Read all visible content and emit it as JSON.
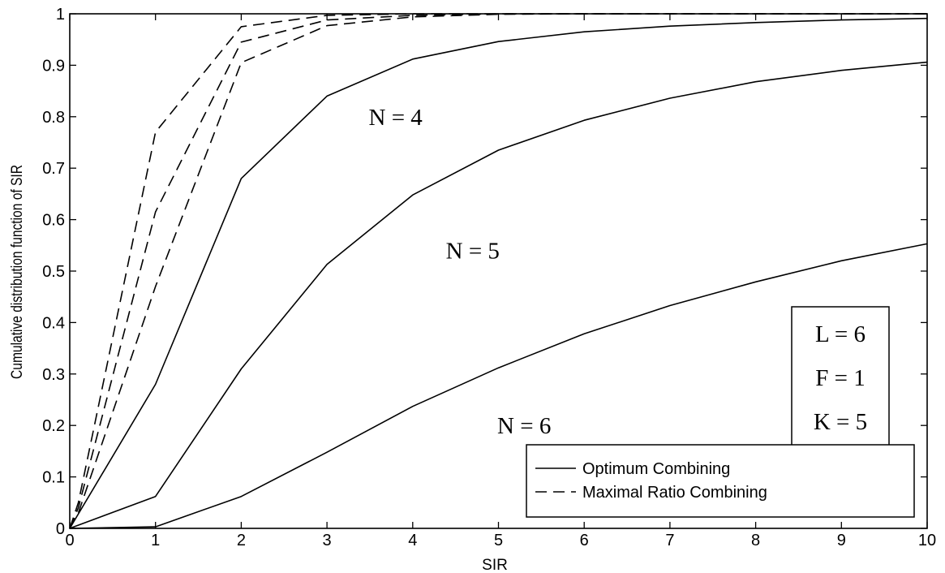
{
  "chart_data": {
    "type": "line",
    "title": "",
    "xlabel": "SIR",
    "ylabel": "Cumulative distribution function of SIR",
    "xlim": [
      0,
      10
    ],
    "ylim": [
      0,
      1
    ],
    "x_ticks": [
      "0",
      "1",
      "2",
      "3",
      "4",
      "5",
      "6",
      "7",
      "8",
      "9",
      "10"
    ],
    "y_ticks": [
      "0",
      "0.1",
      "0.2",
      "0.3",
      "0.4",
      "0.5",
      "0.6",
      "0.7",
      "0.8",
      "0.9",
      "1"
    ],
    "grid": false,
    "legend_position": "bottom-right",
    "legend": [
      {
        "label": "Optimum Combining",
        "style": "solid"
      },
      {
        "label": "Maximal Ratio Combining",
        "style": "dashed"
      }
    ],
    "params_box": [
      "L = 6",
      "F = 1",
      "K = 5"
    ],
    "annotations": [
      {
        "text": "N = 4",
        "x": 3.8,
        "y": 0.8
      },
      {
        "text": "N = 5",
        "x": 4.7,
        "y": 0.54
      },
      {
        "text": "N = 6",
        "x": 5.3,
        "y": 0.2
      }
    ],
    "series": [
      {
        "group": "Optimum Combining",
        "style": "solid",
        "x": [
          0,
          1,
          2,
          3,
          4,
          5,
          6,
          7,
          8,
          9,
          10
        ],
        "y": [
          0,
          0.28,
          0.68,
          0.84,
          0.912,
          0.946,
          0.965,
          0.976,
          0.983,
          0.988,
          0.991
        ]
      },
      {
        "group": "Optimum Combining",
        "style": "solid",
        "x": [
          0,
          1,
          2,
          3,
          4,
          5,
          6,
          7,
          8,
          9,
          10
        ],
        "y": [
          0,
          0.062,
          0.31,
          0.513,
          0.648,
          0.735,
          0.793,
          0.836,
          0.868,
          0.89,
          0.906
        ]
      },
      {
        "group": "Optimum Combining",
        "style": "solid",
        "x": [
          0,
          1,
          2,
          3,
          4,
          5,
          6,
          7,
          8,
          9,
          10
        ],
        "y": [
          0,
          0.003,
          0.062,
          0.148,
          0.237,
          0.312,
          0.378,
          0.433,
          0.479,
          0.52,
          0.553
        ]
      },
      {
        "group": "Maximal Ratio Combining",
        "style": "dashed",
        "x": [
          0,
          0.1,
          1,
          2,
          3,
          4,
          5,
          6,
          7,
          8,
          9,
          10
        ],
        "y": [
          0,
          0.05,
          0.77,
          0.975,
          0.997,
          1,
          1,
          1,
          1,
          1,
          1,
          1
        ]
      },
      {
        "group": "Maximal Ratio Combining",
        "style": "dashed",
        "x": [
          0,
          0.1,
          1,
          2,
          3,
          4,
          5,
          6,
          7,
          8,
          9,
          10
        ],
        "y": [
          0,
          0.04,
          0.615,
          0.945,
          0.988,
          0.997,
          1,
          1,
          1,
          1,
          1,
          1
        ]
      },
      {
        "group": "Maximal Ratio Combining",
        "style": "dashed",
        "x": [
          0,
          0.1,
          1,
          2,
          3,
          4,
          5,
          6,
          7,
          8,
          9,
          10
        ],
        "y": [
          0,
          0.03,
          0.47,
          0.905,
          0.977,
          0.994,
          0.999,
          1,
          1,
          1,
          1,
          1
        ]
      }
    ]
  }
}
